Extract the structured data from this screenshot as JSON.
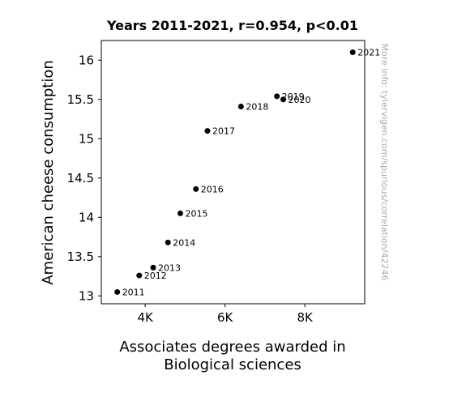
{
  "chart_data": {
    "type": "scatter",
    "title": "Years 2011-2021, r=0.954, p<0.01",
    "xlabel_lines": [
      "Associates degrees awarded in",
      "Biological sciences"
    ],
    "ylabel": "American cheese consumption",
    "xlim": [
      2900,
      9500
    ],
    "ylim": [
      12.9,
      16.25
    ],
    "x_ticks": [
      {
        "value": 4000,
        "label": "4K"
      },
      {
        "value": 6000,
        "label": "6K"
      },
      {
        "value": 8000,
        "label": "8K"
      }
    ],
    "y_ticks": [
      {
        "value": 13,
        "label": "13"
      },
      {
        "value": 13.5,
        "label": "13.5"
      },
      {
        "value": 14,
        "label": "14"
      },
      {
        "value": 14.5,
        "label": "14.5"
      },
      {
        "value": 15,
        "label": "15"
      },
      {
        "value": 15.5,
        "label": "15.5"
      },
      {
        "value": 16,
        "label": "16"
      }
    ],
    "points": [
      {
        "label": "2011",
        "x": 3300,
        "y": 13.05
      },
      {
        "label": "2012",
        "x": 3850,
        "y": 13.26
      },
      {
        "label": "2013",
        "x": 4200,
        "y": 13.36
      },
      {
        "label": "2014",
        "x": 4570,
        "y": 13.68
      },
      {
        "label": "2015",
        "x": 4880,
        "y": 14.05
      },
      {
        "label": "2016",
        "x": 5270,
        "y": 14.36
      },
      {
        "label": "2017",
        "x": 5560,
        "y": 15.1
      },
      {
        "label": "2018",
        "x": 6400,
        "y": 15.41
      },
      {
        "label": "2019",
        "x": 7300,
        "y": 15.54
      },
      {
        "label": "2020",
        "x": 7460,
        "y": 15.5
      },
      {
        "label": "2021",
        "x": 9200,
        "y": 16.1
      }
    ],
    "grid": false,
    "marker_color": "#000000"
  },
  "watermark": "More info: tylervigen.com/spurious/correlation/42246"
}
